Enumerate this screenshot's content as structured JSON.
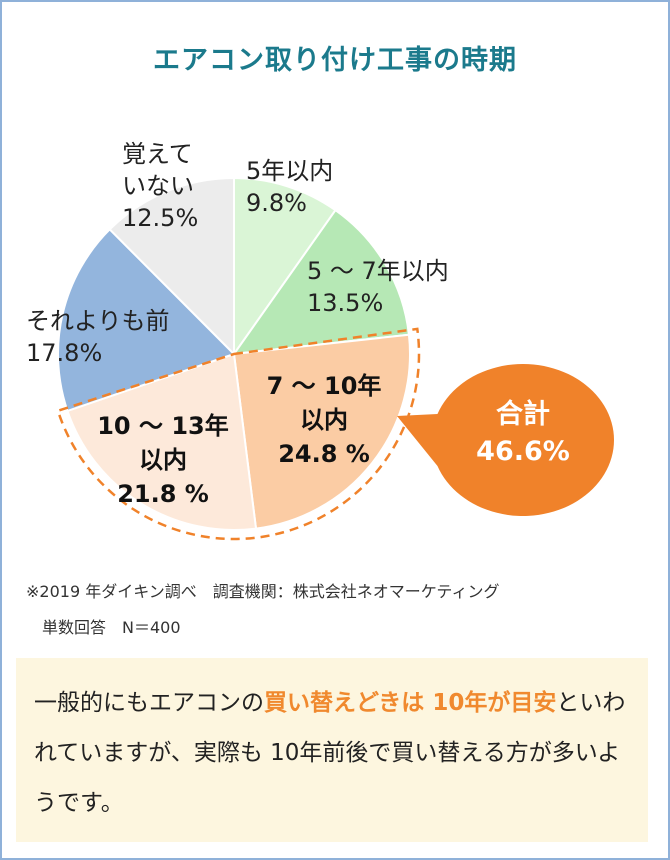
{
  "title": "エアコン取り付け工事の時期",
  "chart_data": {
    "type": "pie",
    "unit": "%",
    "slices": [
      {
        "label_lines": [
          "5年以内"
        ],
        "value": 9.8,
        "value_text": "9.8%",
        "color": "#daf5d6"
      },
      {
        "label_lines": [
          "5 ～ 7年以内"
        ],
        "value": 13.5,
        "value_text": "13.5%",
        "color": "#b6e8b5"
      },
      {
        "label_lines": [
          "7 ～ 10年",
          "以内"
        ],
        "value": 24.8,
        "value_text": "24.8 %",
        "color": "#fbcca4",
        "bold": true
      },
      {
        "label_lines": [
          "10 ～ 13年",
          "以内"
        ],
        "value": 21.8,
        "value_text": "21.8 %",
        "color": "#fde9da",
        "bold": true
      },
      {
        "label_lines": [
          "それよりも前"
        ],
        "value": 17.8,
        "value_text": "17.8%",
        "color": "#93b5dd"
      },
      {
        "label_lines": [
          "覚えて",
          "いない"
        ],
        "value": 12.5,
        "value_text": "12.5%",
        "color": "#ececec"
      }
    ],
    "callout": {
      "label": "合計",
      "value": "46.6%",
      "color": "#f0822a"
    }
  },
  "notes": {
    "line1": "※2019 年ダイキン調べ　調査機関：株式会社ネオマーケティング",
    "line2": "単数回答　N＝400"
  },
  "summary": {
    "part1": "一般的にもエアコンの",
    "highlight": "買い替えどきは 10年が目安",
    "part2": "といわれていますが、実際も 10年前後で買い替える方が多いようです。"
  }
}
